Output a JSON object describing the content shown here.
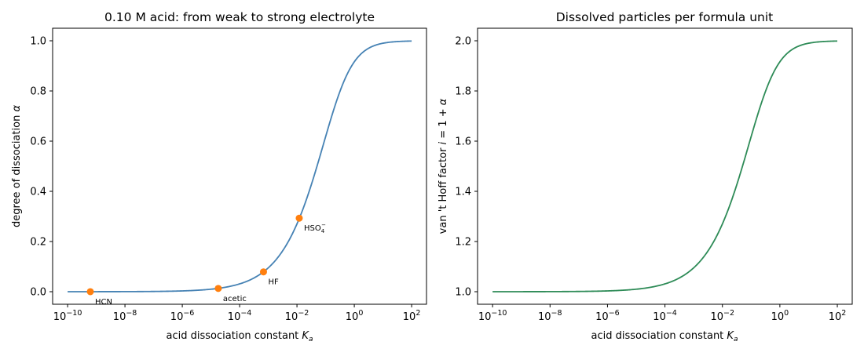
{
  "chart_data": [
    {
      "type": "line",
      "title": "0.10 M acid: from weak to strong electrolyte",
      "xlabel": "acid dissociation constant K_a",
      "ylabel": "degree of dissociation α",
      "x_scale": "log",
      "concentration_M": 0.1,
      "xlim": [
        3e-11,
        330.0
      ],
      "ylim": [
        -0.05,
        1.05
      ],
      "x_ticks": [
        {
          "value": 1e-10,
          "base": "10",
          "exp": "−10"
        },
        {
          "value": 1e-08,
          "base": "10",
          "exp": "−8"
        },
        {
          "value": 1e-06,
          "base": "10",
          "exp": "−6"
        },
        {
          "value": 0.0001,
          "base": "10",
          "exp": "−4"
        },
        {
          "value": 0.01,
          "base": "10",
          "exp": "−2"
        },
        {
          "value": 1,
          "base": "10",
          "exp": "0"
        },
        {
          "value": 100,
          "base": "10",
          "exp": "2"
        }
      ],
      "y_ticks": [
        {
          "value": 0.0,
          "label": "0.0"
        },
        {
          "value": 0.2,
          "label": "0.2"
        },
        {
          "value": 0.4,
          "label": "0.4"
        },
        {
          "value": 0.6,
          "label": "0.6"
        },
        {
          "value": 0.8,
          "label": "0.8"
        },
        {
          "value": 1.0,
          "label": "1.0"
        }
      ],
      "series": [
        {
          "x_range": [
            1e-10,
            100
          ],
          "color": "#4682b4",
          "formula": "alpha"
        }
      ],
      "points": [
        {
          "label": "HCN",
          "ka": 6.2e-10,
          "alpha": 0.0001
        },
        {
          "label": "acetic",
          "ka": 1.8e-05,
          "alpha": 0.013
        },
        {
          "label": "HF",
          "ka": 0.00068,
          "alpha": 0.079
        },
        {
          "label": "HSO4−",
          "ka": 0.012,
          "alpha": 0.293
        }
      ],
      "point_color": "#ff7f0e",
      "grid": false,
      "legend": "none"
    },
    {
      "type": "line",
      "title": "Dissolved particles per formula unit",
      "xlabel": "acid dissociation constant K_a",
      "ylabel": "van 't Hoff factor i = 1 + α",
      "x_scale": "log",
      "concentration_M": 0.1,
      "xlim": [
        3e-11,
        330.0
      ],
      "ylim": [
        0.95,
        2.05
      ],
      "x_ticks": [
        {
          "value": 1e-10,
          "base": "10",
          "exp": "−10"
        },
        {
          "value": 1e-08,
          "base": "10",
          "exp": "−8"
        },
        {
          "value": 1e-06,
          "base": "10",
          "exp": "−6"
        },
        {
          "value": 0.0001,
          "base": "10",
          "exp": "−4"
        },
        {
          "value": 0.01,
          "base": "10",
          "exp": "−2"
        },
        {
          "value": 1,
          "base": "10",
          "exp": "0"
        },
        {
          "value": 100,
          "base": "10",
          "exp": "2"
        }
      ],
      "y_ticks": [
        {
          "value": 1.0,
          "label": "1.0"
        },
        {
          "value": 1.2,
          "label": "1.2"
        },
        {
          "value": 1.4,
          "label": "1.4"
        },
        {
          "value": 1.6,
          "label": "1.6"
        },
        {
          "value": 1.8,
          "label": "1.8"
        },
        {
          "value": 2.0,
          "label": "2.0"
        }
      ],
      "series": [
        {
          "x_range": [
            1e-10,
            100
          ],
          "color": "#2e8b57",
          "formula": "one_plus_alpha"
        }
      ],
      "grid": false,
      "legend": "none"
    }
  ]
}
